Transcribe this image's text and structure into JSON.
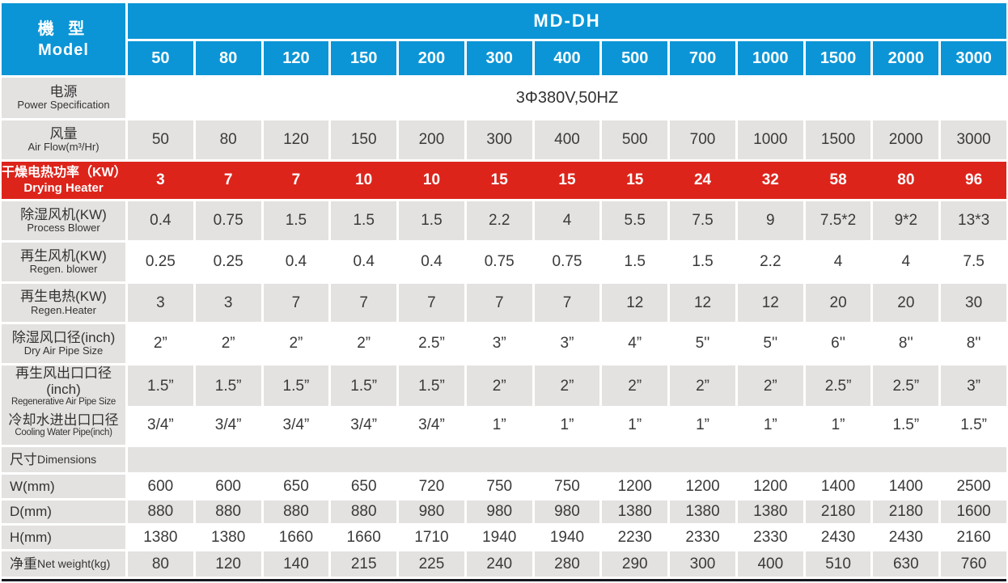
{
  "colors": {
    "header_blue": "#0b95d6",
    "heater_red": "#dd241b",
    "cell_gray": "#e4e2e0",
    "bottom_rule": "#17171f"
  },
  "header": {
    "model_zh": "機 型",
    "model_en": "Model",
    "series": "MD-DH",
    "models": [
      "50",
      "80",
      "120",
      "150",
      "200",
      "300",
      "400",
      "500",
      "700",
      "1000",
      "1500",
      "2000",
      "3000"
    ]
  },
  "rows": [
    {
      "name": "power-specification",
      "label_zh": "电源",
      "label_en": "Power Specification",
      "layout": "stacked",
      "bg": "white",
      "span_value": "3Φ380V,50HZ"
    },
    {
      "name": "air-flow",
      "label_zh": "风量",
      "label_en": "Air Flow(m³/Hr)",
      "layout": "stacked",
      "bg": "gray",
      "values": [
        "50",
        "80",
        "120",
        "150",
        "200",
        "300",
        "400",
        "500",
        "700",
        "1000",
        "1500",
        "2000",
        "3000"
      ]
    },
    {
      "name": "drying-heater",
      "label_zh": "干燥电热功率（KW）",
      "label_en": "Drying Heater",
      "layout": "stacked",
      "bg": "red",
      "values": [
        "3",
        "7",
        "7",
        "10",
        "10",
        "15",
        "15",
        "15",
        "24",
        "32",
        "58",
        "80",
        "96"
      ]
    },
    {
      "name": "process-blower",
      "label_zh": "除湿风机(KW)",
      "label_en": "Process Blower",
      "layout": "stacked",
      "bg": "gray",
      "values": [
        "0.4",
        "0.75",
        "1.5",
        "1.5",
        "1.5",
        "2.2",
        "4",
        "5.5",
        "7.5",
        "9",
        "7.5*2",
        "9*2",
        "13*3"
      ]
    },
    {
      "name": "regen-blower",
      "label_zh": "再生风机(KW)",
      "label_en": "Regen. blower",
      "layout": "stacked",
      "bg": "white",
      "values": [
        "0.25",
        "0.25",
        "0.4",
        "0.4",
        "0.4",
        "0.75",
        "0.75",
        "1.5",
        "1.5",
        "2.2",
        "4",
        "4",
        "7.5"
      ]
    },
    {
      "name": "regen-heater",
      "label_zh": "再生电热(KW)",
      "label_en": "Regen.Heater",
      "layout": "stacked",
      "bg": "gray",
      "values": [
        "3",
        "3",
        "7",
        "7",
        "7",
        "7",
        "7",
        "12",
        "12",
        "12",
        "20",
        "20",
        "30"
      ]
    },
    {
      "name": "dry-air-pipe-size",
      "label_zh": "除湿风口径(inch)",
      "label_en": "Dry Air Pipe Size",
      "layout": "stacked",
      "bg": "white",
      "values": [
        "2”",
        "2”",
        "2”",
        "2”",
        "2.5”",
        "3”",
        "3”",
        "4”",
        "5''",
        "5''",
        "6''",
        "8''",
        "8''"
      ]
    },
    {
      "name": "regenerative-air-pipe-size",
      "label_zh": "再生风出口口径(inch)",
      "label_en": "Regenerative Air Pipe Size",
      "layout": "stacked",
      "bg": "gray",
      "values": [
        "1.5”",
        "1.5”",
        "1.5”",
        "1.5”",
        "1.5”",
        "2”",
        "2”",
        "2”",
        "2”",
        "2”",
        "2.5”",
        "2.5”",
        "3”"
      ]
    },
    {
      "name": "cooling-water-pipe",
      "label_zh": "冷却水进出口口径",
      "label_en": "Cooling Water Pipe(inch)",
      "layout": "stacked",
      "bg": "white",
      "values": [
        "3/4”",
        "3/4”",
        "3/4”",
        "3/4”",
        "3/4”",
        "1”",
        "1”",
        "1”",
        "1”",
        "1”",
        "1”",
        "1.5”",
        "1.5”"
      ]
    },
    {
      "name": "dimensions-section",
      "label_zh": "尺寸",
      "label_en": "Dimensions",
      "layout": "inline",
      "bg": "gray",
      "section": true
    },
    {
      "name": "width-mm",
      "label_zh": "W(mm)",
      "label_en": "",
      "layout": "inline",
      "bg": "white",
      "values": [
        "600",
        "600",
        "650",
        "650",
        "720",
        "750",
        "750",
        "1200",
        "1200",
        "1200",
        "1400",
        "1400",
        "2500"
      ]
    },
    {
      "name": "depth-mm",
      "label_zh": "D(mm)",
      "label_en": "",
      "layout": "inline",
      "bg": "gray",
      "values": [
        "880",
        "880",
        "880",
        "880",
        "980",
        "980",
        "980",
        "1380",
        "1380",
        "1380",
        "2180",
        "2180",
        "1600"
      ]
    },
    {
      "name": "height-mm",
      "label_zh": "H(mm)",
      "label_en": "",
      "layout": "inline",
      "bg": "white",
      "values": [
        "1380",
        "1380",
        "1660",
        "1660",
        "1710",
        "1940",
        "1940",
        "2230",
        "2330",
        "2330",
        "2430",
        "2430",
        "2160"
      ]
    },
    {
      "name": "net-weight",
      "label_zh": "净重",
      "label_en": "Net weight(kg)",
      "layout": "inline",
      "bg": "gray",
      "values": [
        "80",
        "120",
        "140",
        "215",
        "225",
        "240",
        "280",
        "290",
        "300",
        "400",
        "510",
        "630",
        "760"
      ]
    }
  ]
}
